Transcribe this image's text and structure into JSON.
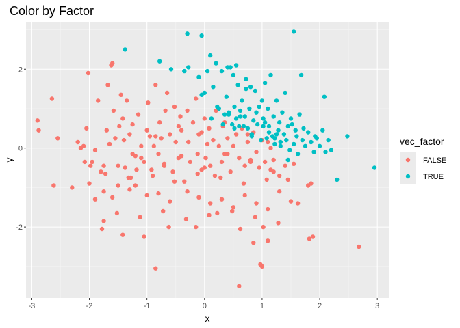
{
  "chart_data": {
    "type": "scatter",
    "title": "Color by Factor",
    "xlabel": "x",
    "ylabel": "y",
    "xlim": [
      -3.1,
      3.2
    ],
    "ylim": [
      -3.8,
      3.2
    ],
    "xticks": [
      -3,
      -2,
      -1,
      0,
      1,
      2,
      3
    ],
    "yticks": [
      -2,
      0,
      2
    ],
    "xtick_labels": [
      "-3",
      "-2",
      "-1",
      "0",
      "1",
      "2",
      "3"
    ],
    "ytick_labels": [
      "-2",
      "0",
      "2"
    ],
    "grid": true,
    "legend": {
      "title": "vec_factor",
      "position": "right",
      "entries": [
        {
          "label": "FALSE",
          "color": "#F8766D"
        },
        {
          "label": "TRUE",
          "color": "#00BFC4"
        }
      ]
    },
    "series": [
      {
        "name": "FALSE",
        "color": "#F8766D",
        "x": [
          -2.9,
          -2.88,
          -2.65,
          -2.55,
          -2.62,
          -2.3,
          -2.2,
          -2.15,
          -2.08,
          -2.05,
          -2.02,
          -1.98,
          -1.95,
          -1.9,
          -1.85,
          -1.8,
          -1.75,
          -1.7,
          -1.68,
          -1.62,
          -1.6,
          -1.58,
          -1.55,
          -1.5,
          -1.48,
          -1.45,
          -1.42,
          -1.4,
          -1.38,
          -1.35,
          -1.3,
          -1.28,
          -1.25,
          -1.2,
          -1.18,
          -1.15,
          -1.1,
          -1.05,
          -1.0,
          -0.98,
          -0.95,
          -0.9,
          -0.88,
          -0.85,
          -0.8,
          -0.78,
          -0.75,
          -0.7,
          -0.68,
          -0.65,
          -0.6,
          -0.55,
          -0.52,
          -0.5,
          -0.45,
          -0.42,
          -0.4,
          -0.35,
          -0.3,
          -0.28,
          -0.25,
          -0.2,
          -0.15,
          -0.12,
          -0.1,
          -0.05,
          0.0,
          0.02,
          0.05,
          0.08,
          0.1,
          0.15,
          0.18,
          0.2,
          0.25,
          0.3,
          0.32,
          0.35,
          0.4,
          0.45,
          0.5,
          0.55,
          0.6,
          0.65,
          0.7,
          0.75,
          0.8,
          0.85,
          0.9,
          0.95,
          1.0,
          1.05,
          1.1,
          1.15,
          1.2,
          1.3,
          1.4,
          1.55,
          1.8,
          1.85,
          -2.0,
          -1.75,
          -1.6,
          -1.3,
          -1.2,
          -1.0,
          -0.8,
          -0.6,
          -0.3,
          -0.1,
          0.1,
          0.3,
          0.5,
          0.7,
          0.9,
          1.1,
          1.3,
          1.5,
          -1.9,
          -1.5,
          -1.1,
          -0.7,
          -0.4,
          0.0,
          0.4,
          0.8,
          1.2,
          -2.1,
          -1.65,
          -1.25,
          -0.85,
          -0.45,
          -0.05,
          0.35,
          0.75,
          1.15,
          1.45,
          -1.72,
          -1.32,
          -0.92,
          -0.52,
          -0.12,
          0.28,
          0.68,
          1.08,
          -1.52,
          -1.12,
          -0.72,
          -0.32,
          0.08,
          0.48,
          0.88,
          1.28,
          -1.42,
          -0.62,
          0.22,
          0.62,
          1.02,
          2.68,
          1.88,
          1.82,
          1.0,
          0.97,
          0.6,
          0.85,
          -0.85,
          1.62,
          -1.05,
          -1.78,
          -1.75,
          -0.15,
          1.1
        ],
        "y": [
          0.7,
          0.45,
          1.25,
          0.25,
          -0.95,
          -1.0,
          0.15,
          0.0,
          -0.35,
          0.5,
          1.9,
          -0.45,
          -0.35,
          -1.3,
          1.2,
          -0.6,
          -0.45,
          0.45,
          1.6,
          2.1,
          2.15,
          0.95,
          0.25,
          -0.95,
          0.55,
          1.35,
          0.75,
          0.2,
          -0.5,
          1.2,
          0.35,
          -0.75,
          0.6,
          -0.2,
          -0.55,
          0.85,
          0.05,
          -0.35,
          0.45,
          1.15,
          0.3,
          -0.7,
          0.05,
          1.6,
          -0.15,
          0.65,
          0.25,
          -0.45,
          0.95,
          1.4,
          0.35,
          -0.6,
          1.05,
          0.15,
          -0.25,
          0.8,
          0.45,
          -0.85,
          0.95,
          0.15,
          -0.35,
          0.65,
          1.25,
          -0.15,
          0.35,
          -0.55,
          0.75,
          -0.25,
          0.1,
          0.5,
          -0.45,
          0.2,
          -0.7,
          0.95,
          0.05,
          -0.35,
          0.55,
          -0.15,
          0.25,
          -0.6,
          0.05,
          0.35,
          -0.25,
          0.5,
          -0.45,
          0.15,
          -0.3,
          0.4,
          -0.1,
          -0.5,
          0.2,
          -0.35,
          0.15,
          -0.55,
          -0.3,
          -0.7,
          -0.45,
          -0.4,
          -0.95,
          -0.9,
          -0.9,
          -1.1,
          -1.25,
          -1.05,
          -0.95,
          -1.2,
          -1.15,
          -1.35,
          -1.1,
          -1.25,
          -1.4,
          -1.3,
          -1.5,
          -1.2,
          -1.4,
          -1.55,
          -1.1,
          -1.35,
          -0.05,
          -0.45,
          -0.25,
          -0.4,
          -0.2,
          -0.5,
          -0.15,
          -0.35,
          -0.6,
          0.05,
          0.1,
          -0.15,
          0.3,
          0.55,
          0.4,
          0.65,
          0.35,
          0.0,
          -0.8,
          -0.65,
          -0.75,
          -0.55,
          -0.85,
          -0.65,
          -0.75,
          -0.9,
          -0.8,
          -1.65,
          -1.75,
          -1.6,
          -1.8,
          -1.7,
          -1.6,
          -1.75,
          -1.9,
          -2.2,
          -2.0,
          -1.65,
          -2.05,
          -2.0,
          -2.5,
          -2.25,
          -2.3,
          -3.0,
          -2.95,
          -3.5,
          -2.4,
          -3.05,
          -1.4,
          -2.25,
          -2.05,
          -1.85,
          -2.0,
          -2.35
        ],
        "point_count_note": "approximate"
      },
      {
        "name": "TRUE",
        "color": "#00BFC4",
        "x": [
          -1.38,
          -0.78,
          -0.58,
          -0.35,
          -0.3,
          -0.1,
          -0.05,
          0.0,
          0.05,
          0.1,
          0.15,
          0.2,
          0.25,
          0.3,
          0.35,
          0.38,
          0.4,
          0.42,
          0.45,
          0.48,
          0.5,
          0.52,
          0.55,
          0.58,
          0.6,
          0.62,
          0.65,
          0.68,
          0.7,
          0.72,
          0.75,
          0.78,
          0.8,
          0.82,
          0.85,
          0.88,
          0.9,
          0.92,
          0.95,
          0.98,
          1.0,
          1.02,
          1.05,
          1.08,
          1.1,
          1.12,
          1.15,
          1.18,
          1.2,
          1.22,
          1.25,
          1.28,
          1.3,
          1.32,
          1.35,
          1.38,
          1.4,
          1.42,
          1.45,
          1.48,
          1.5,
          1.55,
          1.58,
          1.6,
          1.62,
          1.65,
          1.7,
          1.75,
          1.8,
          1.85,
          1.9,
          1.95,
          2.0,
          2.05,
          2.1,
          2.15,
          2.2,
          2.3,
          2.48,
          2.95,
          1.55,
          2.08,
          1.68,
          0.72,
          0.55,
          -0.28,
          -0.05,
          0.12,
          0.22,
          0.32,
          0.42,
          0.52,
          0.62,
          0.82,
          1.02,
          1.12,
          1.22,
          1.32,
          1.52,
          1.72,
          1.92,
          1.45,
          1.25,
          1.05
        ],
        "y": [
          2.5,
          2.2,
          2.0,
          1.95,
          2.9,
          1.8,
          2.85,
          1.4,
          1.95,
          2.35,
          1.55,
          2.15,
          1.0,
          1.95,
          0.85,
          1.3,
          2.05,
          0.9,
          2.05,
          0.6,
          1.85,
          1.05,
          0.75,
          1.6,
          0.55,
          0.95,
          1.2,
          0.55,
          0.8,
          1.75,
          0.5,
          1.0,
          1.55,
          0.35,
          0.7,
          1.45,
          0.9,
          0.6,
          1.05,
          0.2,
          1.2,
          0.75,
          1.65,
          0.25,
          1.0,
          0.55,
          1.85,
          0.3,
          0.8,
          0.1,
          1.2,
          0.45,
          0.65,
          0.05,
          0.9,
          0.35,
          1.4,
          0.2,
          0.55,
          -0.05,
          0.75,
          0.1,
          0.45,
          0.3,
          -0.15,
          0.85,
          0.2,
          0.05,
          0.4,
          0.15,
          -0.1,
          0.25,
          0.05,
          0.45,
          -0.1,
          0.2,
          -0.05,
          -0.8,
          0.3,
          -0.5,
          2.95,
          1.3,
          1.85,
          1.5,
          2.1,
          2.05,
          1.35,
          0.75,
          1.05,
          0.6,
          0.85,
          0.5,
          0.8,
          0.3,
          0.55,
          0.4,
          0.25,
          0.15,
          0.6,
          0.5,
          0.3,
          -0.3,
          0.35,
          0.65
        ],
        "point_count_note": "approximate"
      }
    ]
  }
}
